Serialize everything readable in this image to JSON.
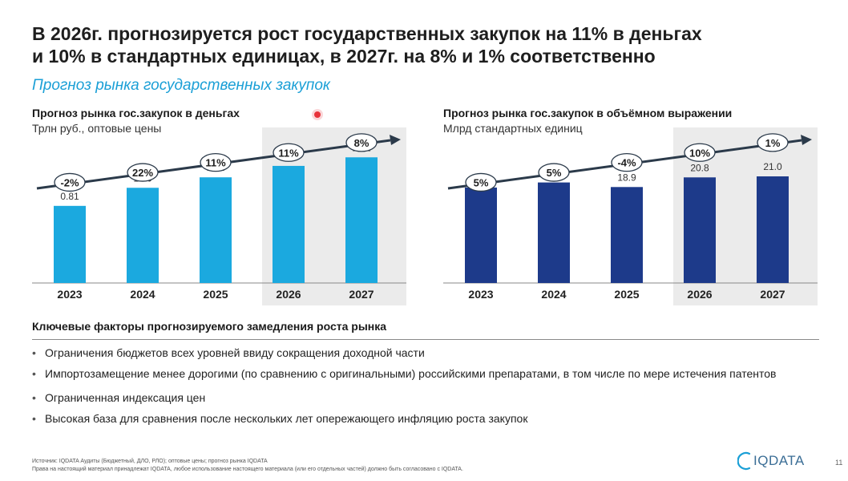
{
  "title": {
    "line1": "В 2026г. прогнозируется рост государственных закупок на 11% в деньгах",
    "line2": "и 10% в стандартных единицах, в 2027г. на 8% и 1% соответственно"
  },
  "subtitle": "Прогноз рынка государственных закупок",
  "colors": {
    "accent": "#1a9fd6",
    "money_bar": "#1ba9df",
    "volume_bar": "#1d3a8a",
    "forecast_shade": "#ebebeb"
  },
  "chart_data": [
    {
      "type": "bar",
      "title": "Прогноз рынка гос.закупок в деньгах",
      "ylabel": "Трлн руб., оптовые цены",
      "categories": [
        "2023",
        "2024",
        "2025",
        "2026",
        "2027"
      ],
      "values": [
        0.81,
        1.0,
        1.11,
        1.23,
        1.32
      ],
      "value_labels": [
        "0.81",
        "1.00",
        "1.11",
        "1.23",
        "1.32"
      ],
      "growth_labels": [
        "-2%",
        "22%",
        "11%",
        "11%",
        "8%"
      ],
      "forecast_categories": [
        "2026",
        "2027"
      ],
      "ylim": [
        0,
        1.6
      ]
    },
    {
      "type": "bar",
      "title": "Прогноз рынка гос.закупок в объёмном выражении",
      "ylabel": "Млрд стандартных единиц",
      "categories": [
        "2023",
        "2024",
        "2025",
        "2026",
        "2027"
      ],
      "values": [
        18.8,
        19.8,
        18.9,
        20.8,
        21.0
      ],
      "value_labels": [
        "18.8",
        "19.8",
        "18.9",
        "20.8",
        "21.0"
      ],
      "growth_labels": [
        "5%",
        "5%",
        "-4%",
        "10%",
        "1%"
      ],
      "forecast_categories": [
        "2026",
        "2027"
      ],
      "ylim": [
        0,
        30
      ]
    }
  ],
  "factors": {
    "title": "Ключевые факторы прогнозируемого замедления роста рынка",
    "items": [
      "Ограничения бюджетов всех уровней ввиду сокращения доходной части",
      "Импортозамещение менее дорогими (по сравнению с оригинальными) российскими препаратами, в том числе по мере истечения патентов",
      "Ограниченная индексация цен",
      "Высокая база для сравнения после нескольких лет опережающего инфляцию роста закупок"
    ]
  },
  "footer": {
    "source_line1": "Источник: IQDATA Аудиты (Бюджетный, ДЛО, РЛО); оптовые цены; прогноз рынка IQDATA",
    "source_line2": "Права на настоящий материал принадлежат IQDATA, любое использование настоящего материала (или его отдельных частей) должно быть согласовано с IQDATA.",
    "logo": "IQDATA",
    "logo_icon": "iqdata-arc-icon",
    "page_number": "11"
  }
}
